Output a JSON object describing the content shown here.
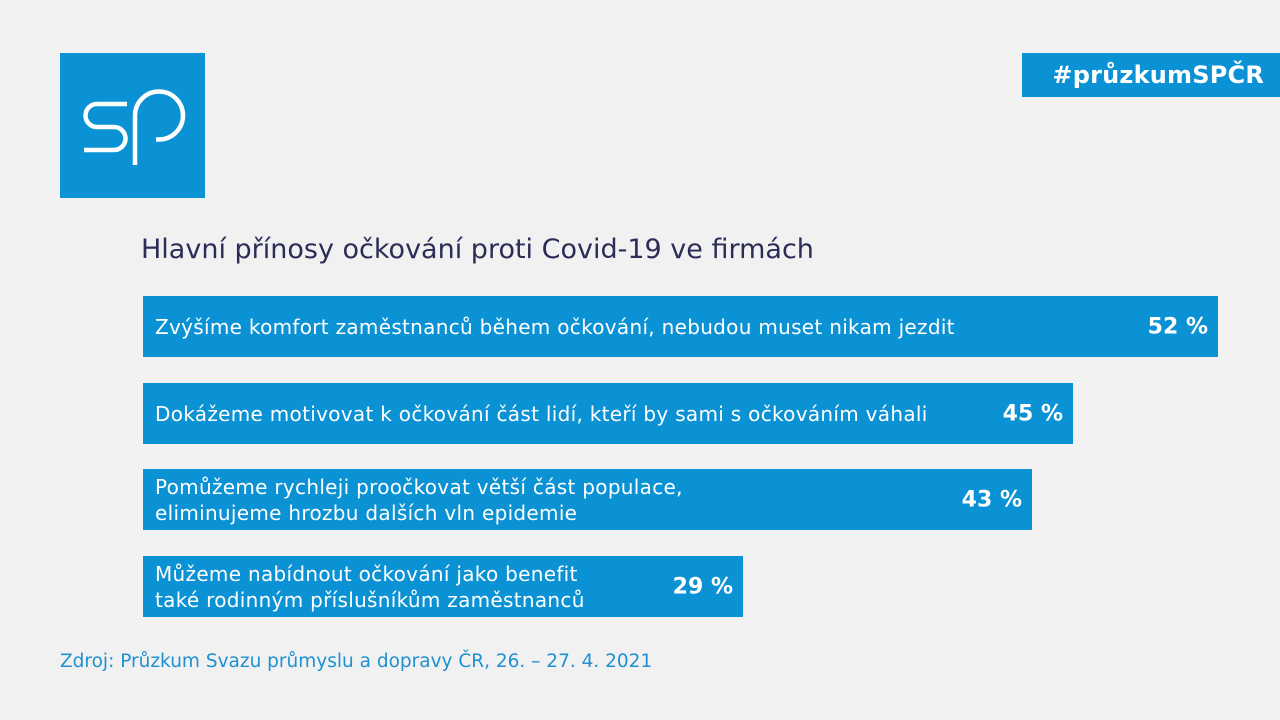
{
  "branding": {
    "hashtag": "#průzkumSPČR",
    "accent_color": "#0b92d4",
    "logo_icon": "sp-logo-icon"
  },
  "chart_data": {
    "type": "bar",
    "orientation": "horizontal",
    "title": "Hlavní přínosy očkování proti Covid-19 ve firmách",
    "categories": [
      "Zvýšíme komfort zaměstnanců během očkování, nebudou muset nikam jezdit",
      "Dokážeme motivovat k očkování část lidí, kteří by sami s očkováním váhali",
      "Pomůžeme rychleji proočkovat větší část populace,\neliminujeme hrozbu dalších vln epidemie",
      "Můžeme nabídnout očkování jako benefit\ntaké rodinným příslušníkům zaměstnanců"
    ],
    "values": [
      52,
      45,
      43,
      29
    ],
    "value_labels": [
      "52 %",
      "45 %",
      "43 %",
      "29 %"
    ],
    "unit": "%",
    "xlim": [
      0,
      52
    ],
    "grid": false,
    "bar_color": "#0b92d4"
  },
  "source": "Zdroj: Průzkum Svazu průmyslu a dopravy ČR, 26. – 27. 4. 2021"
}
